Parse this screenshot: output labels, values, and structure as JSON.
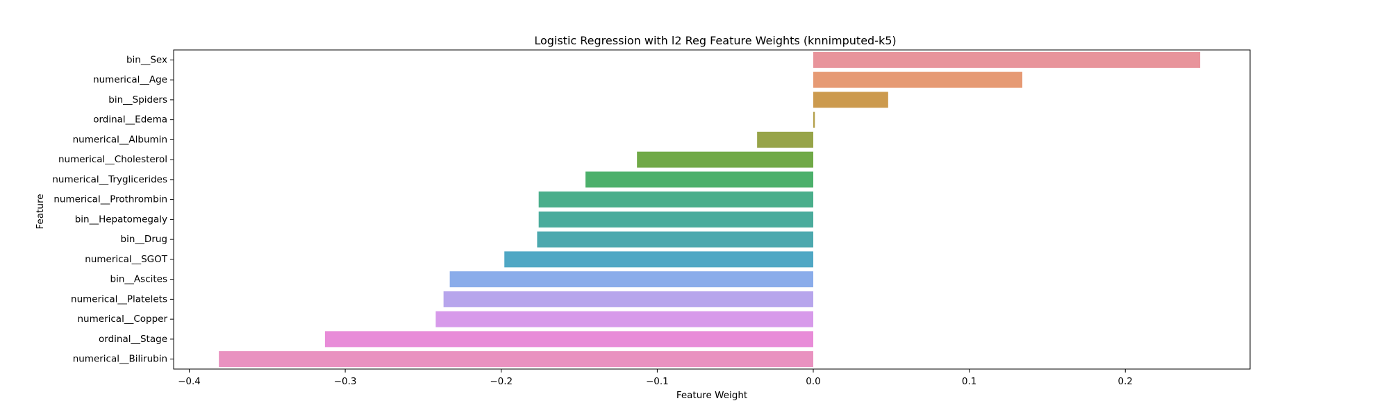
{
  "chart_data": {
    "type": "bar",
    "orientation": "horizontal",
    "title": "Logistic Regression with l2 Reg Feature Weights (knnimputed-k5)",
    "xlabel": "Feature Weight",
    "ylabel": "Feature",
    "xlim": [
      -0.41,
      0.28
    ],
    "xticks": [
      -0.4,
      -0.3,
      -0.2,
      -0.1,
      0.0,
      0.1,
      0.2
    ],
    "xtick_labels": [
      "−0.4",
      "−0.3",
      "−0.2",
      "−0.1",
      "0.0",
      "0.1",
      "0.2"
    ],
    "grid": false,
    "legend": "none",
    "categories": [
      "bin__Sex",
      "numerical__Age",
      "bin__Spiders",
      "ordinal__Edema",
      "numerical__Albumin",
      "numerical__Cholesterol",
      "numerical__Tryglicerides",
      "numerical__Prothrombin",
      "bin__Hepatomegaly",
      "bin__Drug",
      "numerical__SGOT",
      "bin__Ascites",
      "numerical__Platelets",
      "numerical__Copper",
      "ordinal__Stage",
      "numerical__Bilirubin"
    ],
    "values": [
      0.248,
      0.134,
      0.048,
      0.001,
      -0.036,
      -0.113,
      -0.146,
      -0.176,
      -0.176,
      -0.177,
      -0.198,
      -0.233,
      -0.237,
      -0.242,
      -0.313,
      -0.381
    ],
    "colors": [
      "#e8949b",
      "#e69a74",
      "#cc9a4e",
      "#b39f48",
      "#97a449",
      "#70a947",
      "#4cb06b",
      "#4aae8b",
      "#4aab9c",
      "#4ca8ae",
      "#4fa7c4",
      "#8aacea",
      "#b7a5ec",
      "#d79aea",
      "#e88cd8",
      "#e992c0"
    ]
  }
}
